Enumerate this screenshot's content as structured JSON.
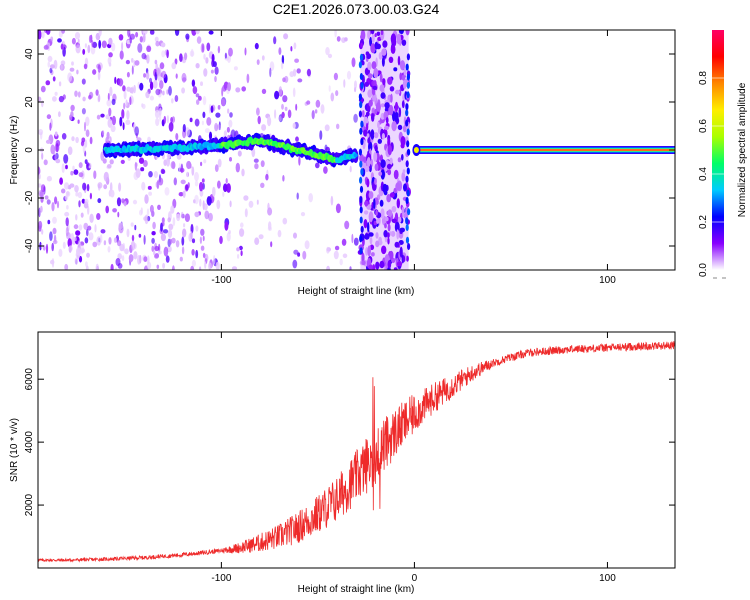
{
  "title": "C2E1.2026.073.00.03.G24",
  "colors": {
    "snr_line": "#ee2a2a",
    "frame": "#000000",
    "background": "#ffffff"
  },
  "chart_data": [
    {
      "type": "heatmap",
      "name": "spectrogram",
      "xlabel": "Height of straight line (km)",
      "ylabel": "Frequency (Hz)",
      "xlim": [
        -195,
        135
      ],
      "ylim": [
        -50,
        50
      ],
      "xticks": [
        -100,
        0,
        100
      ],
      "xtick_labels": [
        "-100",
        "",
        "100"
      ],
      "yticks": [
        -40,
        -20,
        0,
        20,
        40
      ],
      "ytick_labels": [
        "-40",
        "-20",
        "0",
        "20",
        "40"
      ],
      "colorbar": {
        "label": "Normalized spectral amplitude",
        "range": [
          0,
          1
        ],
        "ticks": [
          0,
          0.2,
          0.4,
          0.6,
          0.8
        ],
        "tick_labels": [
          "0.0",
          "0.2",
          "0.4",
          "0.6",
          "0.8"
        ],
        "stops": [
          "#ffffff",
          "#8800ff",
          "#0000ff",
          "#00ccff",
          "#00ff66",
          "#aaff00",
          "#ffee00",
          "#ff8800",
          "#ff0000",
          "#ff0066"
        ]
      },
      "ridge": {
        "x": [
          -160,
          -140,
          -120,
          -100,
          -90,
          -80,
          -70,
          -60,
          -50,
          -45,
          -40,
          -35,
          -32,
          -30
        ],
        "freq_hz": [
          0,
          0.5,
          1,
          2,
          3,
          4,
          2,
          0,
          -2,
          -3,
          -4,
          -3,
          -2,
          -2
        ]
      },
      "tone": {
        "x_start": 0,
        "x_end": 135,
        "freq_hz": 0
      },
      "gap": {
        "x_start": -28,
        "x_end": -3
      }
    },
    {
      "type": "line",
      "name": "snr",
      "xlabel": "Height of straight line (km)",
      "ylabel": "SNR (10 * v/v)",
      "xlim": [
        -195,
        135
      ],
      "ylim": [
        0,
        7500
      ],
      "xticks": [
        -100,
        0,
        100
      ],
      "xtick_labels": [
        "-100",
        "0",
        "100"
      ],
      "yticks": [
        2000,
        4000,
        6000
      ],
      "ytick_labels": [
        "2000",
        "4000",
        "6000"
      ],
      "series": [
        {
          "name": "SNR",
          "x": [
            -195,
            -180,
            -160,
            -140,
            -120,
            -100,
            -90,
            -80,
            -70,
            -60,
            -50,
            -40,
            -30,
            -20,
            -10,
            0,
            10,
            20,
            30,
            40,
            50,
            60,
            70,
            80,
            100,
            120,
            135
          ],
          "y": [
            250,
            250,
            280,
            330,
            420,
            550,
            650,
            800,
            1000,
            1300,
            1700,
            2200,
            2900,
            3600,
            4300,
            4900,
            5400,
            5800,
            6200,
            6500,
            6700,
            6850,
            6900,
            6950,
            7000,
            7050,
            7080
          ]
        }
      ]
    }
  ]
}
